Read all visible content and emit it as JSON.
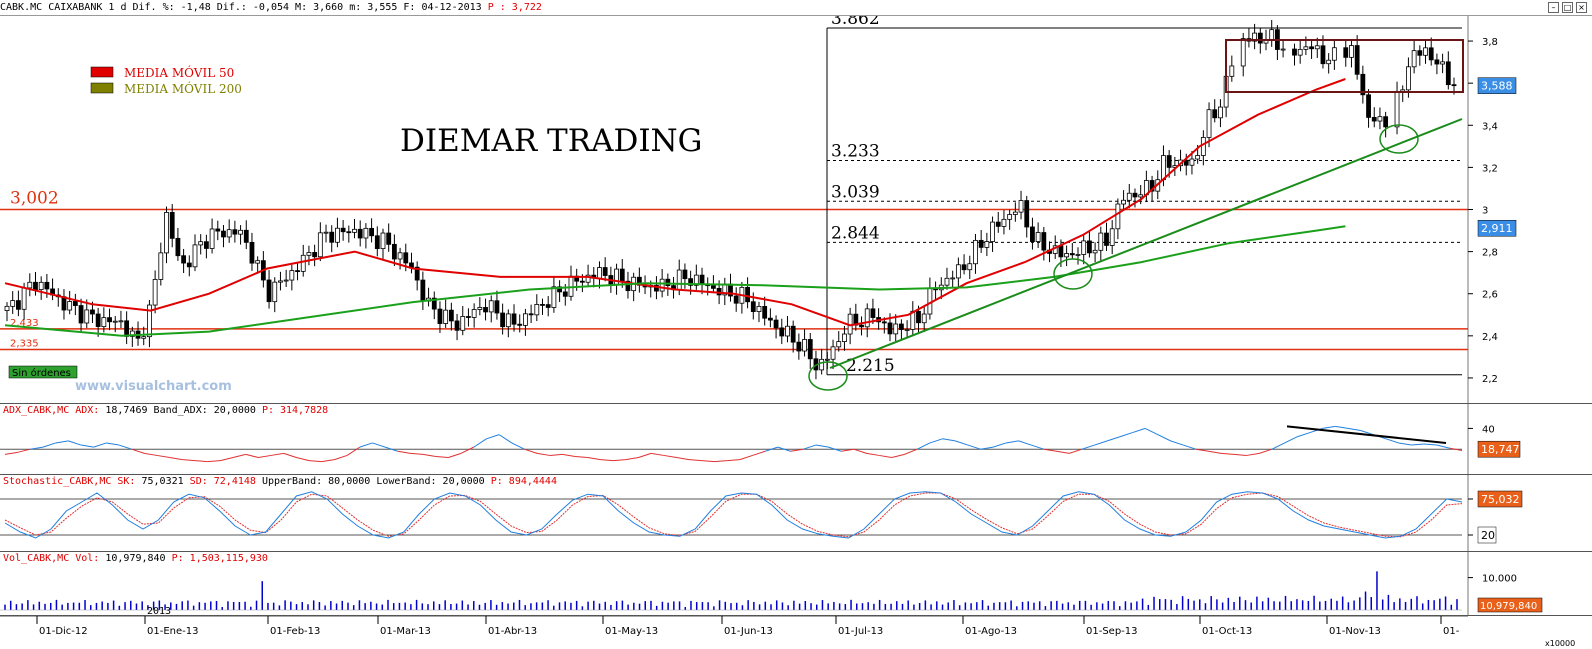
{
  "header": {
    "symbol": "CABK.MC",
    "name": "CAIXABANK",
    "stats": "1 d Dif. %: -1,48 Dif.: -0,054 M: 3,660 m: 3,555 F: 04-12-2013",
    "last_label": "P : 3,722"
  },
  "window_buttons": [
    "–",
    "□",
    "×"
  ],
  "legend": [
    {
      "label": "MEDIA MÓVIL 50",
      "color": "#e00000"
    },
    {
      "label": "MEDIA MÓVIL 200",
      "color": "#808000"
    }
  ],
  "watermark": "DIEMAR TRADING",
  "site": "www.visualchart.com",
  "orders_label": "Sin órdenes",
  "year_label": "2013",
  "colors": {
    "ma50": "#e00000",
    "ma200": "#1aa01a",
    "adx": "#2080e0",
    "stoch_sk": "#2080e0",
    "stoch_sd": "#e03030",
    "volume": "#0000cc",
    "hline": "#e03010",
    "trend": "#1a8c1a"
  },
  "chart_data": [
    {
      "type": "candlestick",
      "panel": "price",
      "ylim": [
        2.1,
        3.9
      ],
      "y_ticks": [
        "3,8",
        "3,6",
        "3,4",
        "3,2",
        "3",
        "2,8",
        "2,6",
        "2,4",
        "2,2"
      ],
      "x_ticks": [
        "01-Dic-12",
        "01-Ene-13",
        "01-Feb-13",
        "01-Mar-13",
        "01-Abr-13",
        "01-May-13",
        "01-Jun-13",
        "01-Jul-13",
        "01-Ago-13",
        "01-Sep-13",
        "01-Oct-13",
        "01-Nov-13",
        "01-"
      ],
      "price_tags": [
        {
          "label": "3,588",
          "value": 3.588
        },
        {
          "label": "2,911",
          "value": 2.911
        }
      ],
      "series": [
        {
          "name": "MEDIA MÓVIL 50",
          "points": [
            [
              0,
              2.65
            ],
            [
              0.03,
              2.6
            ],
            [
              0.06,
              2.55
            ],
            [
              0.1,
              2.52
            ],
            [
              0.14,
              2.6
            ],
            [
              0.18,
              2.72
            ],
            [
              0.24,
              2.8
            ],
            [
              0.28,
              2.72
            ],
            [
              0.34,
              2.68
            ],
            [
              0.4,
              2.68
            ],
            [
              0.46,
              2.62
            ],
            [
              0.5,
              2.6
            ],
            [
              0.54,
              2.55
            ],
            [
              0.58,
              2.45
            ],
            [
              0.62,
              2.5
            ],
            [
              0.66,
              2.65
            ],
            [
              0.7,
              2.75
            ],
            [
              0.74,
              2.88
            ],
            [
              0.78,
              3.05
            ],
            [
              0.82,
              3.3
            ],
            [
              0.86,
              3.45
            ],
            [
              0.9,
              3.57
            ],
            [
              0.92,
              3.62
            ]
          ]
        },
        {
          "name": "MEDIA MÓVIL 200",
          "points": [
            [
              0,
              2.45
            ],
            [
              0.08,
              2.4
            ],
            [
              0.14,
              2.42
            ],
            [
              0.2,
              2.48
            ],
            [
              0.28,
              2.56
            ],
            [
              0.36,
              2.62
            ],
            [
              0.44,
              2.65
            ],
            [
              0.52,
              2.64
            ],
            [
              0.6,
              2.62
            ],
            [
              0.66,
              2.63
            ],
            [
              0.72,
              2.68
            ],
            [
              0.78,
              2.75
            ],
            [
              0.84,
              2.84
            ],
            [
              0.9,
              2.9
            ],
            [
              0.92,
              2.92
            ]
          ]
        }
      ],
      "horizontal_levels": [
        {
          "label": "3,002",
          "value": 3.0,
          "style": "solid"
        },
        {
          "label": "2,433",
          "value": 2.433,
          "style": "solid"
        },
        {
          "label": "2,335",
          "value": 2.335,
          "style": "solid"
        }
      ],
      "fibonacci": [
        {
          "label": "3.862",
          "value": 3.862
        },
        {
          "label": "3.233",
          "value": 3.233
        },
        {
          "label": "3.039",
          "value": 3.039
        },
        {
          "label": "2.844",
          "value": 2.844
        },
        {
          "label": "2.215",
          "value": 2.215
        }
      ]
    },
    {
      "type": "line",
      "panel": "ADX",
      "title_name": "ADX_CABK,MC ADX:",
      "title_value": "18,7469",
      "title_band": "Band_ADX: 20,0000",
      "title_p": "P: 314,7828",
      "y_ticks": [
        "40"
      ],
      "current_label": "18,747",
      "band": 20,
      "ylim": [
        0,
        50
      ],
      "values": [
        15,
        17,
        20,
        22,
        26,
        28,
        24,
        22,
        26,
        24,
        20,
        16,
        14,
        12,
        10,
        9,
        8,
        9,
        12,
        15,
        12,
        14,
        16,
        12,
        9,
        8,
        10,
        14,
        22,
        26,
        22,
        18,
        16,
        15,
        13,
        12,
        16,
        22,
        30,
        34,
        26,
        20,
        16,
        14,
        15,
        13,
        12,
        10,
        9,
        10,
        12,
        16,
        14,
        12,
        10,
        9,
        8,
        9,
        10,
        14,
        18,
        22,
        18,
        20,
        24,
        22,
        18,
        20,
        16,
        14,
        12,
        15,
        20,
        26,
        30,
        28,
        24,
        20,
        22,
        26,
        28,
        24,
        20,
        18,
        16,
        20,
        24,
        28,
        32,
        36,
        40,
        34,
        28,
        24,
        20,
        18,
        16,
        15,
        14,
        16,
        20,
        26,
        32,
        36,
        40,
        42,
        40,
        38,
        34,
        30,
        26,
        24,
        25,
        24,
        21,
        18.7
      ]
    },
    {
      "type": "line",
      "panel": "Stochastic",
      "title_name": "Stochastic_CABK,MC SK:",
      "title_sk": "75,0321",
      "title_sd": "SD: 72,4148",
      "title_bands": "UpperBand: 80,0000 LowerBand: 20,0000",
      "title_p": "P: 894,4444",
      "y_ticks": [
        "80",
        "20"
      ],
      "current_label": "75,032",
      "current_low_label": "20",
      "ylim": [
        0,
        100
      ],
      "series": [
        {
          "name": "SK",
          "values": [
            40,
            25,
            15,
            30,
            60,
            75,
            90,
            70,
            45,
            30,
            45,
            75,
            88,
            82,
            60,
            35,
            20,
            25,
            55,
            85,
            92,
            80,
            55,
            35,
            20,
            15,
            25,
            55,
            80,
            90,
            85,
            70,
            45,
            25,
            20,
            30,
            55,
            78,
            88,
            85,
            60,
            40,
            25,
            20,
            18,
            30,
            60,
            85,
            90,
            88,
            70,
            45,
            30,
            22,
            18,
            15,
            30,
            55,
            80,
            90,
            92,
            90,
            75,
            55,
            40,
            25,
            20,
            35,
            60,
            85,
            92,
            88,
            70,
            45,
            30,
            20,
            18,
            25,
            45,
            75,
            88,
            92,
            90,
            80,
            60,
            45,
            35,
            30,
            25,
            20,
            15,
            18,
            30,
            55,
            80,
            75.03
          ]
        },
        {
          "name": "SD",
          "values": [
            45,
            32,
            20,
            25,
            48,
            68,
            82,
            75,
            55,
            38,
            40,
            65,
            82,
            84,
            68,
            45,
            28,
            24,
            45,
            75,
            88,
            85,
            65,
            45,
            28,
            18,
            22,
            45,
            70,
            85,
            86,
            76,
            55,
            35,
            24,
            26,
            45,
            70,
            84,
            86,
            70,
            50,
            32,
            22,
            19,
            26,
            50,
            76,
            88,
            88,
            76,
            55,
            38,
            26,
            20,
            17,
            25,
            45,
            70,
            85,
            90,
            90,
            80,
            62,
            46,
            32,
            22,
            30,
            52,
            76,
            88,
            88,
            76,
            55,
            38,
            25,
            20,
            22,
            38,
            64,
            82,
            88,
            90,
            84,
            68,
            52,
            40,
            33,
            28,
            23,
            18,
            17,
            25,
            45,
            70,
            72.41
          ]
        }
      ]
    },
    {
      "type": "bar",
      "panel": "Volume",
      "title_name": "Vol_CABK,MC Vol:",
      "title_vol": "10,979,840",
      "title_p": "P: 1,503,115,930",
      "y_ticks": [
        "10.000"
      ],
      "current_label": "10,979,840",
      "unit_label": "x10000",
      "ylim": [
        0,
        4000
      ]
    }
  ]
}
